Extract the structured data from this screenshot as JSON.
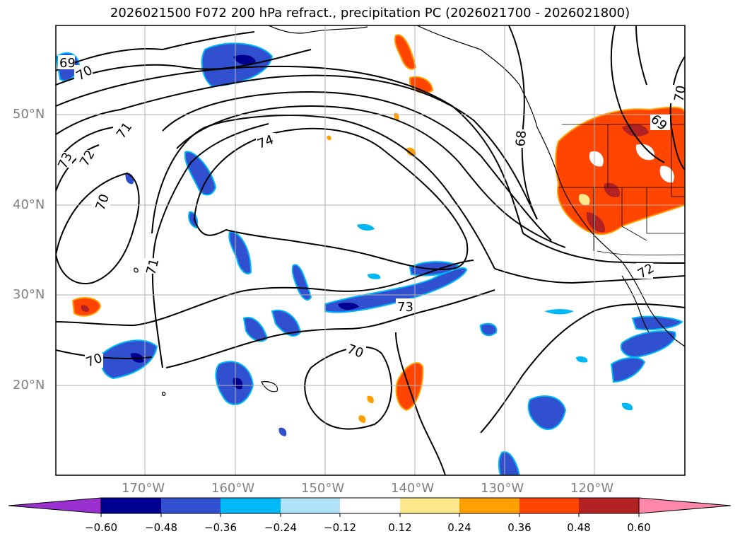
{
  "title": "2026021500 F072 200 hPa refract., precipitation PC (2026021700 - 2026021800)",
  "latitude_labels": [
    "50°N",
    "40°N",
    "30°N",
    "20°N"
  ],
  "longitude_labels": [
    "170°W",
    "160°W",
    "150°W",
    "140°W",
    "130°W",
    "120°W"
  ],
  "contour_labels": [
    "69",
    "70",
    "70",
    "71",
    "73",
    "72",
    "70",
    "71",
    "74",
    "68",
    "70",
    "69",
    "72",
    "73",
    "70",
    "70"
  ],
  "colorbar": {
    "ticks": [
      "−0.60",
      "−0.48",
      "−0.36",
      "−0.24",
      "−0.12",
      "0.12",
      "0.24",
      "0.36",
      "0.48",
      "0.60"
    ],
    "colors": [
      "#9b30d0",
      "#000090",
      "#3050d0",
      "#00b8f5",
      "#b0e2fa",
      "#ffffff",
      "#fde88c",
      "#ffa000",
      "#ff4500",
      "#b22222",
      "#ff88aa"
    ]
  }
}
